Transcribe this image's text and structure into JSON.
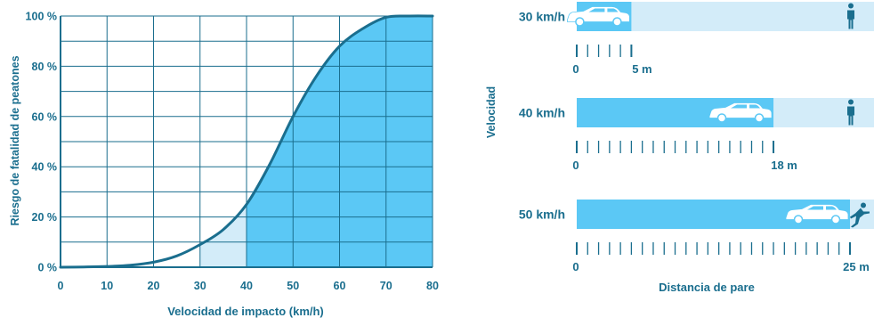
{
  "colors": {
    "primary": "#1a6e8e",
    "fill_dark": "#5bc8f5",
    "fill_light": "#d3ecf9",
    "grid": "#1a6e8e",
    "car": "#ffffff",
    "pedestrian": "#1a6e8e"
  },
  "chart_data": [
    {
      "type": "area",
      "xlabel": "Velocidad de impacto (km/h)",
      "ylabel": "Riesgo de fatalidad de peatones",
      "xlim": [
        0,
        80
      ],
      "ylim": [
        0,
        100
      ],
      "x_ticks": [
        "0",
        "10",
        "20",
        "30",
        "40",
        "50",
        "60",
        "70",
        "80"
      ],
      "y_ticks": [
        "0 %",
        "20 %",
        "40 %",
        "60 %",
        "80 %",
        "100 %"
      ],
      "grid": true,
      "series": [
        {
          "x": [
            0,
            5,
            10,
            15,
            20,
            25,
            30,
            35,
            40,
            45,
            50,
            55,
            60,
            65,
            70,
            75,
            80
          ],
          "y": [
            0,
            0.1,
            0.3,
            0.8,
            2,
            4.5,
            9,
            15,
            25,
            41,
            60,
            76,
            88,
            95,
            99.5,
            100,
            100
          ]
        }
      ],
      "highlight_ranges": [
        {
          "from": 30,
          "to": 40,
          "shade": "light"
        },
        {
          "from": 40,
          "to": 80,
          "shade": "dark"
        }
      ]
    },
    {
      "type": "bar",
      "ylabel": "Velocidad",
      "xlabel": "Distancia de pare",
      "categories": [
        "30 km/h",
        "40 km/h",
        "50 km/h"
      ],
      "values": [
        5,
        18,
        25
      ],
      "value_labels": [
        "5 m",
        "18 m",
        "25 m"
      ],
      "zero_label": "0",
      "units": "m",
      "outcome_icons": [
        "pedestrian-standing",
        "pedestrian-standing",
        "pedestrian-hit"
      ]
    }
  ]
}
